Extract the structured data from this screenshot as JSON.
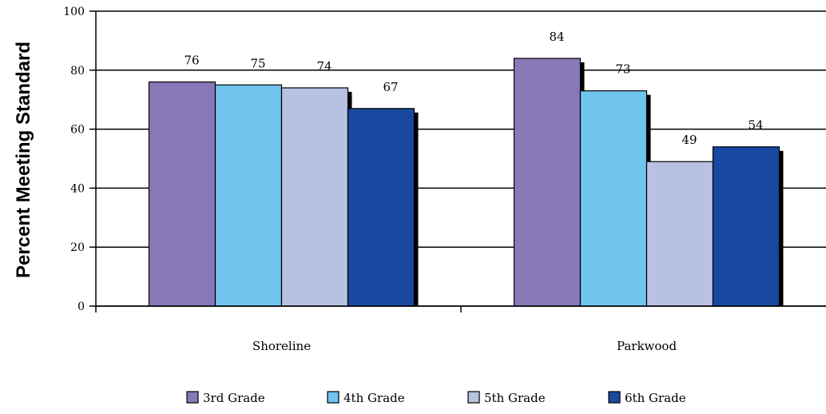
{
  "chart_data": {
    "type": "bar",
    "title": "",
    "xlabel": "",
    "ylabel": "Percent Meeting Standard",
    "ylim": [
      0,
      100
    ],
    "yticks": [
      0,
      20,
      40,
      60,
      80,
      100
    ],
    "grid": true,
    "legend_position": "bottom",
    "categories": [
      "Shoreline",
      "Parkwood"
    ],
    "series": [
      {
        "name": "3rd Grade",
        "values": [
          76,
          84
        ],
        "color": "#8878b8"
      },
      {
        "name": "4th Grade",
        "values": [
          75,
          73
        ],
        "color": "#70c4ee"
      },
      {
        "name": "5th Grade",
        "values": [
          74,
          49
        ],
        "color": "#b9c1e3"
      },
      {
        "name": "6th Grade",
        "values": [
          67,
          54
        ],
        "color": "#1848a0"
      }
    ],
    "data_labels": [
      [
        "76",
        "84"
      ],
      [
        "75",
        "73"
      ],
      [
        "74",
        "49"
      ],
      [
        "67",
        "54"
      ]
    ]
  }
}
